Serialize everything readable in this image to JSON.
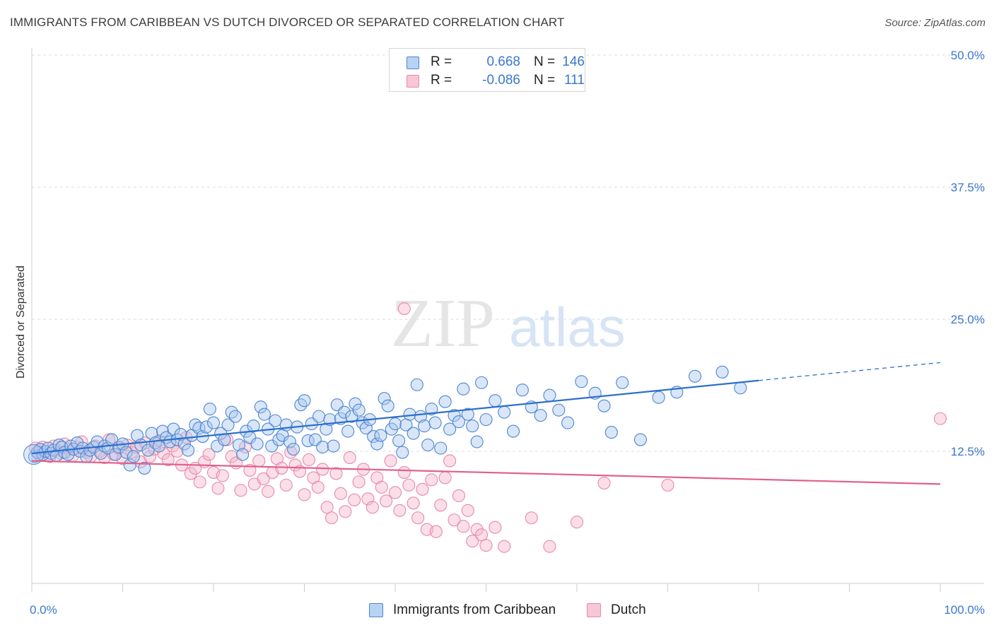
{
  "header": {
    "title": "IMMIGRANTS FROM CARIBBEAN VS DUTCH DIVORCED OR SEPARATED CORRELATION CHART",
    "source": "Source: ZipAtlas.com"
  },
  "watermark": {
    "zip": "ZIP",
    "atlas": "atlas"
  },
  "colors": {
    "blue_fill": "#a9c8f0",
    "blue_stroke": "#4f86d0",
    "blue_line": "#2e6fcc",
    "pink_fill": "#f5b8cc",
    "pink_stroke": "#e889a8",
    "pink_line": "#e0608c",
    "tick_text": "#3a78c9",
    "grid": "#dddddd"
  },
  "legend": {
    "rows": [
      {
        "r_label": "R =",
        "r_value": "0.668",
        "n_label": "N =",
        "n_value": "146"
      },
      {
        "r_label": "R =",
        "r_value": "-0.086",
        "n_label": "N =",
        "n_value": "111"
      }
    ]
  },
  "chart_data": {
    "type": "scatter",
    "title": "IMMIGRANTS FROM CARIBBEAN VS DUTCH DIVORCED OR SEPARATED CORRELATION CHART",
    "xlabel": "",
    "ylabel": "Divorced or Separated",
    "xlim": [
      0,
      100
    ],
    "ylim": [
      0,
      50
    ],
    "x_tick_labels": [
      "0.0%",
      "100.0%"
    ],
    "y_ticks": [
      12.5,
      25.0,
      37.5,
      50.0
    ],
    "y_tick_labels": [
      "12.5%",
      "25.0%",
      "37.5%",
      "50.0%"
    ],
    "grid": true,
    "legend_position": "top-center",
    "series": [
      {
        "name": "Immigrants from Caribbean",
        "color": "#a9c8f0",
        "trend": {
          "x": [
            0,
            80
          ],
          "y": [
            12.3,
            19.2
          ],
          "extended_to_x": 100,
          "extended_y": 20.9
        },
        "points": [
          [
            0.3,
            12.0
          ],
          [
            0.6,
            12.4
          ],
          [
            0.9,
            12.7
          ],
          [
            1.2,
            12.2
          ],
          [
            1.5,
            12.5
          ],
          [
            1.8,
            12.8
          ],
          [
            2.1,
            12.3
          ],
          [
            2.4,
            12.6
          ],
          [
            2.7,
            12.1
          ],
          [
            3.0,
            13.1
          ],
          [
            3.3,
            12.9
          ],
          [
            3.6,
            12.4
          ],
          [
            4.0,
            12.2
          ],
          [
            4.3,
            13.0
          ],
          [
            4.6,
            12.7
          ],
          [
            5.0,
            13.3
          ],
          [
            5.3,
            12.5
          ],
          [
            5.6,
            12.8
          ],
          [
            6.0,
            12.0
          ],
          [
            6.4,
            12.6
          ],
          [
            6.8,
            12.9
          ],
          [
            7.2,
            13.4
          ],
          [
            7.6,
            12.3
          ],
          [
            8.0,
            13.0
          ],
          [
            8.4,
            12.8
          ],
          [
            8.8,
            13.6
          ],
          [
            9.2,
            12.2
          ],
          [
            9.6,
            12.9
          ],
          [
            10.0,
            13.2
          ],
          [
            10.4,
            12.4
          ],
          [
            10.8,
            11.2
          ],
          [
            11.2,
            12.0
          ],
          [
            11.6,
            14.0
          ],
          [
            12.0,
            13.1
          ],
          [
            12.4,
            10.9
          ],
          [
            12.8,
            12.6
          ],
          [
            13.2,
            14.2
          ],
          [
            13.6,
            13.3
          ],
          [
            14.0,
            13.0
          ],
          [
            14.4,
            14.4
          ],
          [
            14.8,
            13.8
          ],
          [
            15.2,
            13.4
          ],
          [
            15.6,
            14.6
          ],
          [
            16.0,
            13.6
          ],
          [
            16.4,
            14.1
          ],
          [
            16.8,
            13.2
          ],
          [
            17.2,
            12.6
          ],
          [
            17.6,
            14.0
          ],
          [
            18.0,
            15.0
          ],
          [
            18.4,
            14.7
          ],
          [
            18.8,
            13.9
          ],
          [
            19.2,
            14.8
          ],
          [
            19.6,
            16.5
          ],
          [
            20.0,
            15.2
          ],
          [
            20.4,
            13.0
          ],
          [
            20.8,
            14.2
          ],
          [
            21.2,
            13.6
          ],
          [
            21.6,
            15.0
          ],
          [
            22.0,
            16.2
          ],
          [
            22.4,
            15.8
          ],
          [
            22.8,
            13.1
          ],
          [
            23.2,
            12.2
          ],
          [
            23.6,
            14.4
          ],
          [
            24.0,
            13.8
          ],
          [
            24.4,
            14.9
          ],
          [
            24.8,
            13.2
          ],
          [
            25.2,
            16.7
          ],
          [
            25.6,
            16.0
          ],
          [
            26.0,
            14.6
          ],
          [
            26.4,
            13.0
          ],
          [
            26.8,
            15.4
          ],
          [
            27.2,
            13.6
          ],
          [
            27.6,
            14.0
          ],
          [
            28.0,
            15.0
          ],
          [
            28.4,
            13.4
          ],
          [
            28.8,
            12.7
          ],
          [
            29.2,
            14.8
          ],
          [
            29.6,
            16.9
          ],
          [
            30.0,
            17.3
          ],
          [
            30.4,
            13.5
          ],
          [
            30.8,
            15.1
          ],
          [
            31.2,
            13.6
          ],
          [
            31.6,
            15.8
          ],
          [
            32.0,
            12.9
          ],
          [
            32.4,
            14.6
          ],
          [
            32.8,
            15.5
          ],
          [
            33.2,
            13.0
          ],
          [
            33.6,
            16.9
          ],
          [
            34.0,
            15.6
          ],
          [
            34.4,
            16.2
          ],
          [
            34.8,
            14.4
          ],
          [
            35.2,
            15.8
          ],
          [
            35.6,
            17.0
          ],
          [
            36.0,
            16.4
          ],
          [
            36.4,
            15.2
          ],
          [
            36.8,
            14.7
          ],
          [
            37.2,
            15.5
          ],
          [
            37.6,
            13.9
          ],
          [
            38.0,
            13.2
          ],
          [
            38.4,
            14.0
          ],
          [
            38.8,
            17.5
          ],
          [
            39.2,
            16.8
          ],
          [
            39.6,
            14.6
          ],
          [
            40.0,
            15.1
          ],
          [
            40.4,
            13.5
          ],
          [
            40.8,
            12.4
          ],
          [
            41.2,
            15.0
          ],
          [
            41.6,
            16.0
          ],
          [
            42.0,
            14.2
          ],
          [
            42.4,
            18.8
          ],
          [
            42.8,
            15.8
          ],
          [
            43.2,
            14.9
          ],
          [
            43.6,
            13.1
          ],
          [
            44.0,
            16.5
          ],
          [
            44.4,
            15.2
          ],
          [
            45.0,
            12.8
          ],
          [
            45.5,
            17.2
          ],
          [
            46.0,
            14.6
          ],
          [
            46.5,
            15.9
          ],
          [
            47.0,
            15.3
          ],
          [
            47.5,
            18.4
          ],
          [
            48.0,
            16.0
          ],
          [
            48.5,
            14.9
          ],
          [
            49.0,
            13.4
          ],
          [
            49.5,
            19.0
          ],
          [
            50.0,
            15.5
          ],
          [
            51.0,
            17.3
          ],
          [
            52.0,
            16.2
          ],
          [
            53.0,
            14.4
          ],
          [
            54.0,
            18.3
          ],
          [
            55.0,
            16.7
          ],
          [
            56.0,
            15.9
          ],
          [
            57.0,
            17.8
          ],
          [
            58.0,
            16.4
          ],
          [
            59.0,
            15.2
          ],
          [
            60.5,
            19.1
          ],
          [
            62.0,
            18.0
          ],
          [
            63.0,
            16.8
          ],
          [
            65.0,
            19.0
          ],
          [
            67.0,
            13.6
          ],
          [
            69.0,
            17.6
          ],
          [
            71.0,
            18.1
          ],
          [
            73.0,
            19.6
          ],
          [
            76.0,
            20.0
          ],
          [
            78.0,
            18.5
          ],
          [
            63.8,
            14.3
          ]
        ]
      },
      {
        "name": "Dutch",
        "color": "#f5b8cc",
        "trend": {
          "x": [
            0,
            100
          ],
          "y": [
            11.6,
            9.4
          ]
        },
        "points": [
          [
            0.4,
            12.8
          ],
          [
            0.8,
            12.2
          ],
          [
            1.2,
            12.9
          ],
          [
            1.6,
            12.4
          ],
          [
            2.0,
            12.0
          ],
          [
            2.4,
            13.0
          ],
          [
            2.8,
            12.6
          ],
          [
            3.2,
            12.3
          ],
          [
            3.6,
            13.2
          ],
          [
            4.0,
            12.7
          ],
          [
            4.5,
            12.1
          ],
          [
            5.0,
            12.9
          ],
          [
            5.5,
            13.4
          ],
          [
            6.0,
            12.4
          ],
          [
            6.5,
            12.0
          ],
          [
            7.0,
            13.0
          ],
          [
            7.5,
            12.5
          ],
          [
            8.0,
            11.9
          ],
          [
            8.5,
            13.6
          ],
          [
            9.0,
            12.2
          ],
          [
            9.5,
            12.8
          ],
          [
            10.0,
            11.8
          ],
          [
            10.5,
            13.1
          ],
          [
            11.0,
            12.4
          ],
          [
            11.5,
            12.9
          ],
          [
            12.0,
            11.5
          ],
          [
            12.5,
            13.3
          ],
          [
            13.0,
            12.0
          ],
          [
            13.5,
            12.7
          ],
          [
            14.0,
            13.5
          ],
          [
            14.5,
            12.3
          ],
          [
            15.0,
            11.7
          ],
          [
            15.5,
            13.0
          ],
          [
            16.0,
            12.5
          ],
          [
            16.5,
            11.2
          ],
          [
            17.0,
            13.8
          ],
          [
            17.5,
            10.4
          ],
          [
            18.0,
            10.9
          ],
          [
            18.5,
            9.6
          ],
          [
            19.0,
            11.5
          ],
          [
            19.5,
            12.2
          ],
          [
            20.0,
            10.5
          ],
          [
            20.5,
            9.0
          ],
          [
            21.0,
            10.2
          ],
          [
            21.5,
            13.6
          ],
          [
            22.0,
            12.0
          ],
          [
            22.5,
            11.4
          ],
          [
            23.0,
            8.8
          ],
          [
            23.5,
            12.9
          ],
          [
            24.0,
            10.7
          ],
          [
            24.5,
            9.4
          ],
          [
            25.0,
            11.6
          ],
          [
            25.5,
            9.9
          ],
          [
            26.0,
            8.7
          ],
          [
            26.5,
            10.5
          ],
          [
            27.0,
            11.8
          ],
          [
            27.5,
            10.9
          ],
          [
            28.0,
            9.3
          ],
          [
            28.5,
            12.4
          ],
          [
            29.0,
            11.2
          ],
          [
            29.5,
            10.6
          ],
          [
            30.0,
            8.4
          ],
          [
            30.5,
            11.7
          ],
          [
            31.0,
            10.0
          ],
          [
            31.5,
            9.1
          ],
          [
            32.0,
            10.8
          ],
          [
            32.5,
            7.2
          ],
          [
            33.0,
            6.2
          ],
          [
            33.5,
            10.4
          ],
          [
            34.0,
            8.5
          ],
          [
            34.5,
            6.8
          ],
          [
            35.0,
            11.9
          ],
          [
            35.5,
            7.9
          ],
          [
            36.0,
            9.6
          ],
          [
            36.5,
            10.8
          ],
          [
            37.0,
            8.0
          ],
          [
            37.5,
            7.2
          ],
          [
            38.0,
            10.0
          ],
          [
            38.5,
            9.1
          ],
          [
            39.0,
            7.8
          ],
          [
            39.5,
            11.6
          ],
          [
            40.0,
            8.6
          ],
          [
            40.5,
            6.9
          ],
          [
            41.0,
            10.5
          ],
          [
            41.5,
            9.3
          ],
          [
            42.0,
            7.6
          ],
          [
            42.5,
            6.2
          ],
          [
            43.0,
            8.9
          ],
          [
            43.5,
            5.1
          ],
          [
            44.0,
            9.8
          ],
          [
            44.5,
            4.9
          ],
          [
            45.0,
            7.4
          ],
          [
            45.5,
            10.0
          ],
          [
            46.0,
            11.6
          ],
          [
            46.5,
            6.0
          ],
          [
            47.0,
            8.3
          ],
          [
            47.5,
            5.4
          ],
          [
            48.0,
            6.9
          ],
          [
            48.5,
            4.0
          ],
          [
            49.0,
            5.1
          ],
          [
            49.5,
            4.6
          ],
          [
            50.0,
            3.6
          ],
          [
            51.0,
            5.3
          ],
          [
            52.0,
            3.5
          ],
          [
            55.0,
            6.2
          ],
          [
            57.0,
            3.5
          ],
          [
            60.0,
            5.8
          ],
          [
            63.0,
            9.5
          ],
          [
            70.0,
            9.3
          ],
          [
            100.0,
            15.6
          ],
          [
            41.0,
            26.0
          ]
        ]
      }
    ]
  }
}
